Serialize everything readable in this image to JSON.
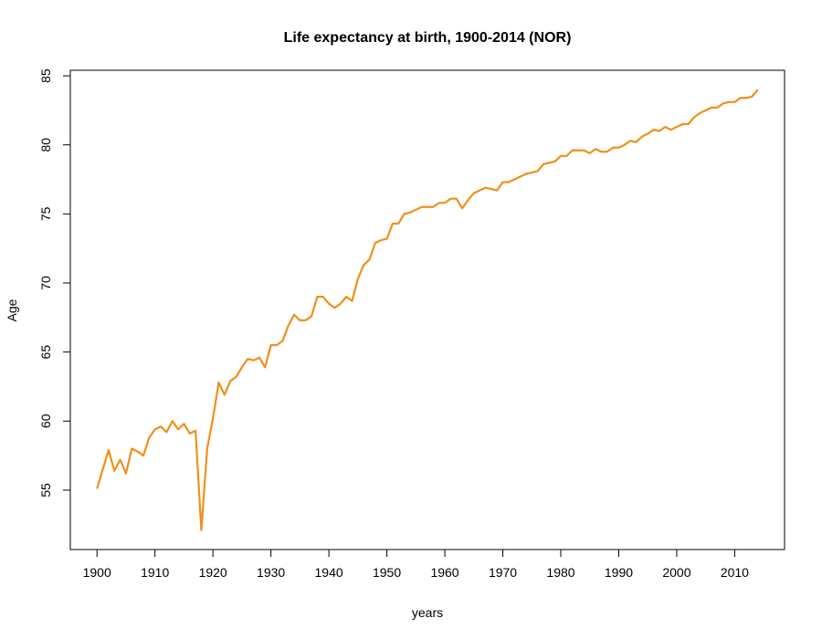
{
  "chart_data": {
    "type": "line",
    "title": "Life expectancy at birth, 1900-2014 (NOR)",
    "xlabel": "years",
    "ylabel": "Age",
    "x": [
      1900,
      1901,
      1902,
      1903,
      1904,
      1905,
      1906,
      1907,
      1908,
      1909,
      1910,
      1911,
      1912,
      1913,
      1914,
      1915,
      1916,
      1917,
      1918,
      1919,
      1920,
      1921,
      1922,
      1923,
      1924,
      1925,
      1926,
      1927,
      1928,
      1929,
      1930,
      1931,
      1932,
      1933,
      1934,
      1935,
      1936,
      1937,
      1938,
      1939,
      1940,
      1941,
      1942,
      1943,
      1944,
      1945,
      1946,
      1947,
      1948,
      1949,
      1950,
      1951,
      1952,
      1953,
      1954,
      1955,
      1956,
      1957,
      1958,
      1959,
      1960,
      1961,
      1962,
      1963,
      1964,
      1965,
      1966,
      1967,
      1968,
      1969,
      1970,
      1971,
      1972,
      1973,
      1974,
      1975,
      1976,
      1977,
      1978,
      1979,
      1980,
      1981,
      1982,
      1983,
      1984,
      1985,
      1986,
      1987,
      1988,
      1989,
      1990,
      1991,
      1992,
      1993,
      1994,
      1995,
      1996,
      1997,
      1998,
      1999,
      2000,
      2001,
      2002,
      2003,
      2004,
      2005,
      2006,
      2007,
      2008,
      2009,
      2010,
      2011,
      2012,
      2013,
      2014
    ],
    "series": [
      {
        "color": "#f0901a",
        "values": [
          55.1,
          56.5,
          57.9,
          56.4,
          57.2,
          56.2,
          58.0,
          57.8,
          57.5,
          58.8,
          59.4,
          59.6,
          59.2,
          60.0,
          59.4,
          59.8,
          59.1,
          59.3,
          52.1,
          58.0,
          60.2,
          62.8,
          61.9,
          62.9,
          63.2,
          63.9,
          64.5,
          64.4,
          64.6,
          63.9,
          65.5,
          65.5,
          65.8,
          66.9,
          67.7,
          67.3,
          67.3,
          67.6,
          69.0,
          69.0,
          68.5,
          68.2,
          68.5,
          69.0,
          68.7,
          70.3,
          71.3,
          71.7,
          72.9,
          73.1,
          73.2,
          74.3,
          74.3,
          75.0,
          75.1,
          75.3,
          75.5,
          75.5,
          75.5,
          75.8,
          75.8,
          76.1,
          76.1,
          75.4,
          76.0,
          76.5,
          76.7,
          76.9,
          76.8,
          76.7,
          77.3,
          77.3,
          77.5,
          77.7,
          77.9,
          78.0,
          78.1,
          78.6,
          78.7,
          78.8,
          79.2,
          79.2,
          79.6,
          79.6,
          79.6,
          79.4,
          79.7,
          79.5,
          79.5,
          79.8,
          79.8,
          80.0,
          80.3,
          80.2,
          80.6,
          80.8,
          81.1,
          81.0,
          81.3,
          81.1,
          81.3,
          81.5,
          81.5,
          82.0,
          82.3,
          82.5,
          82.7,
          82.7,
          83.0,
          83.1,
          83.1,
          83.4,
          83.4,
          83.5,
          84.0
        ]
      }
    ],
    "xlim": [
      1895.4,
      2018.6
    ],
    "ylim": [
      50.7,
      85.4
    ],
    "xticks": [
      1900,
      1910,
      1920,
      1930,
      1940,
      1950,
      1960,
      1970,
      1980,
      1990,
      2000,
      2010
    ],
    "yticks": [
      55,
      60,
      65,
      70,
      75,
      80,
      85
    ]
  }
}
